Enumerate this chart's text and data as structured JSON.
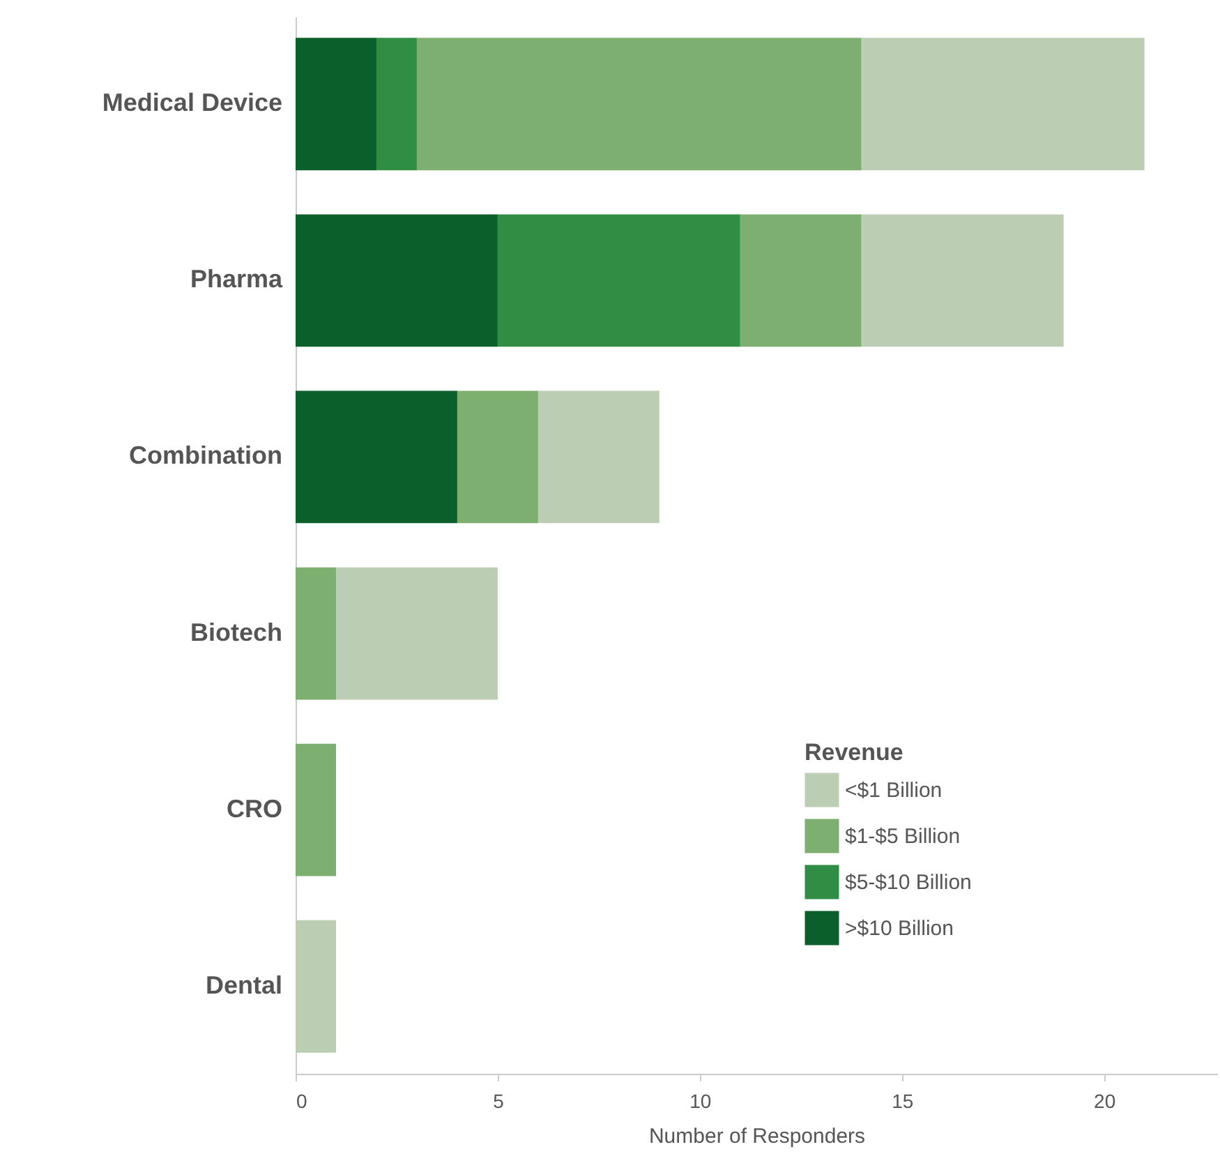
{
  "chart_data": {
    "type": "bar",
    "orientation": "horizontal",
    "stacked": true,
    "xlabel": "Number of Responders",
    "legend_title": "Revenue",
    "legend": "bottom right",
    "categories": [
      "Medical Device",
      "Pharma",
      "Combination",
      "Biotech",
      "CRO",
      "Dental"
    ],
    "series": [
      {
        "name": ">$10 Billion",
        "color": "#0a5f2a",
        "values": [
          2,
          5,
          4,
          0,
          0,
          0
        ]
      },
      {
        "name": "$5-$10 Billion",
        "color": "#2f8d44",
        "values": [
          1,
          6,
          0,
          0,
          0,
          0
        ]
      },
      {
        "name": "$1-$5 Billion",
        "color": "#7caf70",
        "values": [
          11,
          3,
          2,
          1,
          1,
          0
        ]
      },
      {
        "name": "<$1 Billion",
        "color": "#bbceb3",
        "values": [
          7,
          5,
          3,
          4,
          0,
          1
        ]
      }
    ],
    "xlim": [
      0,
      22.8
    ],
    "xticks": [
      0,
      5,
      10,
      15,
      20
    ],
    "grid": false
  }
}
